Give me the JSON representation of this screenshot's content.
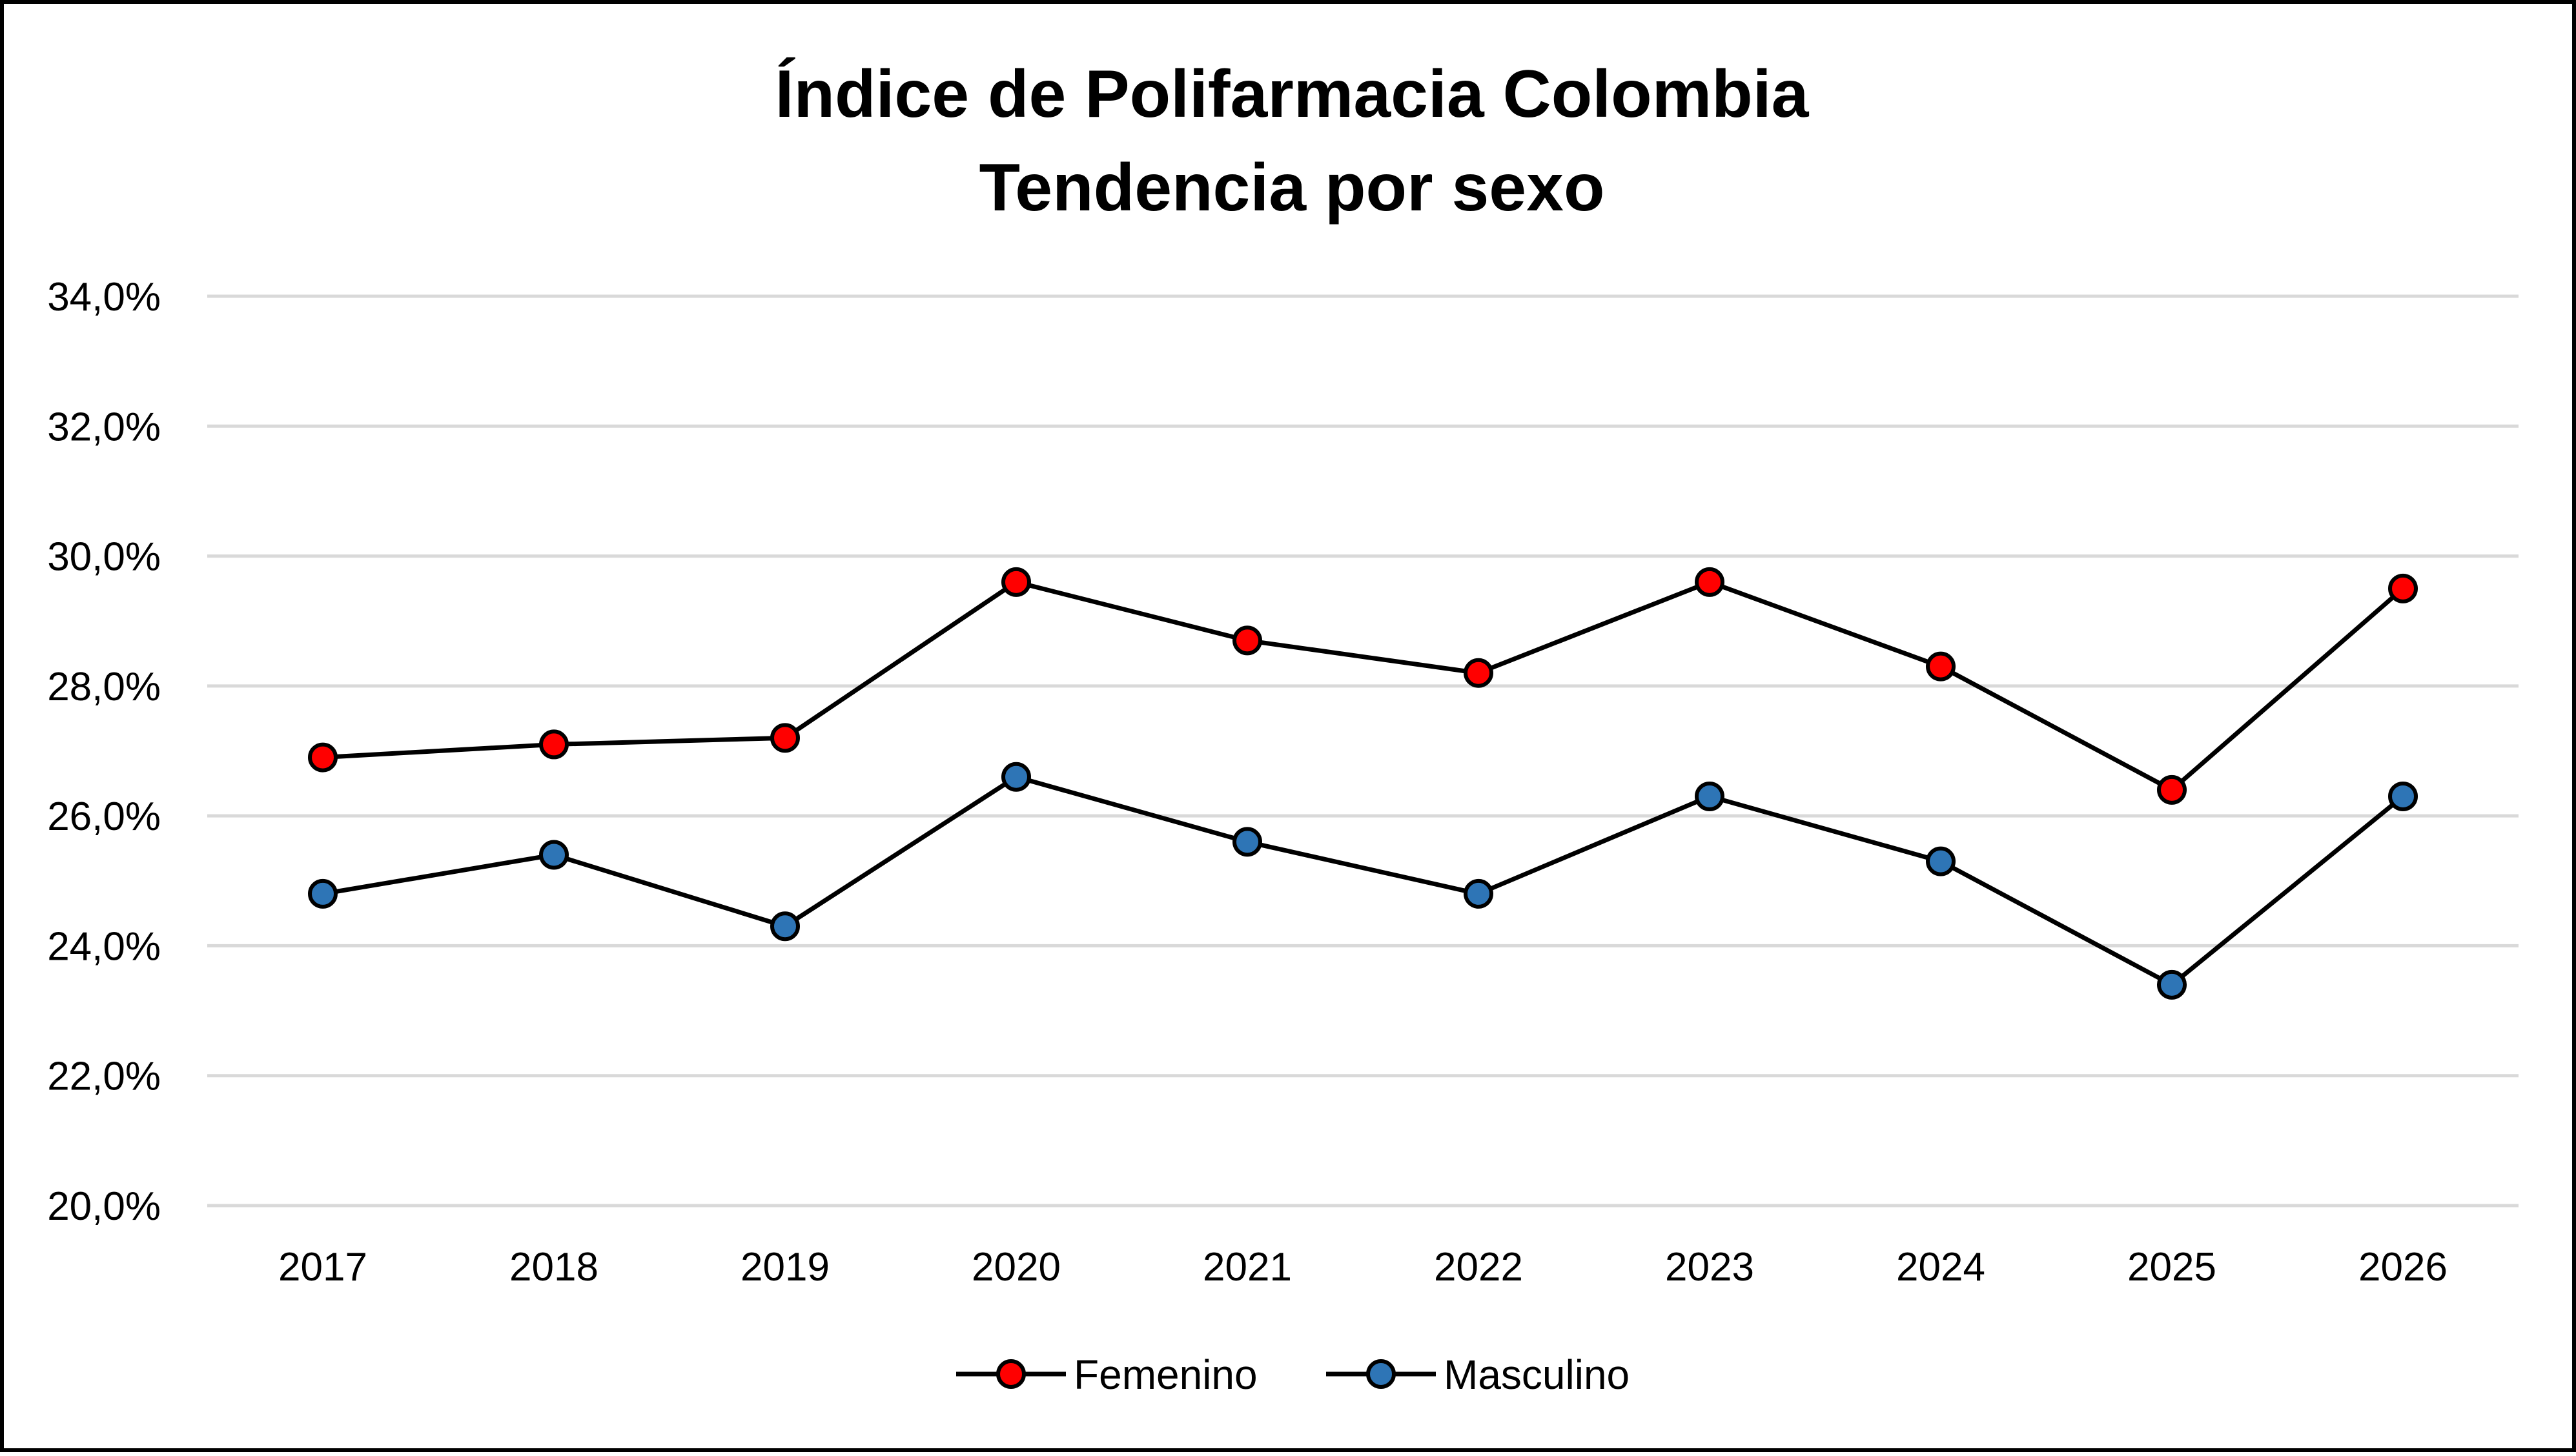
{
  "chart_data": {
    "type": "line",
    "title": "Índice de Polifarmacia Colombia",
    "subtitle": "Tendencia por sexo",
    "xlabel": "",
    "ylabel": "",
    "categories": [
      "2017",
      "2018",
      "2019",
      "2020",
      "2021",
      "2022",
      "2023",
      "2024",
      "2025",
      "2026"
    ],
    "series": [
      {
        "name": "Femenino",
        "color": "#ff0000",
        "values": [
          26.9,
          27.1,
          27.2,
          29.6,
          28.7,
          28.2,
          29.6,
          28.3,
          26.4,
          29.5
        ]
      },
      {
        "name": "Masculino",
        "color": "#2e75b6",
        "values": [
          24.8,
          25.4,
          24.3,
          26.6,
          25.6,
          24.8,
          26.3,
          25.3,
          23.4,
          26.3
        ]
      }
    ],
    "ylim": [
      20,
      34
    ],
    "yticks": [
      "20,0%",
      "22,0%",
      "24,0%",
      "26,0%",
      "28,0%",
      "30,0%",
      "32,0%",
      "34,0%"
    ],
    "grid": true,
    "legend": "bottom-center",
    "colors": {
      "grid": "#d9d9d9",
      "line": "#000000",
      "marker_outline": "#000000"
    }
  }
}
